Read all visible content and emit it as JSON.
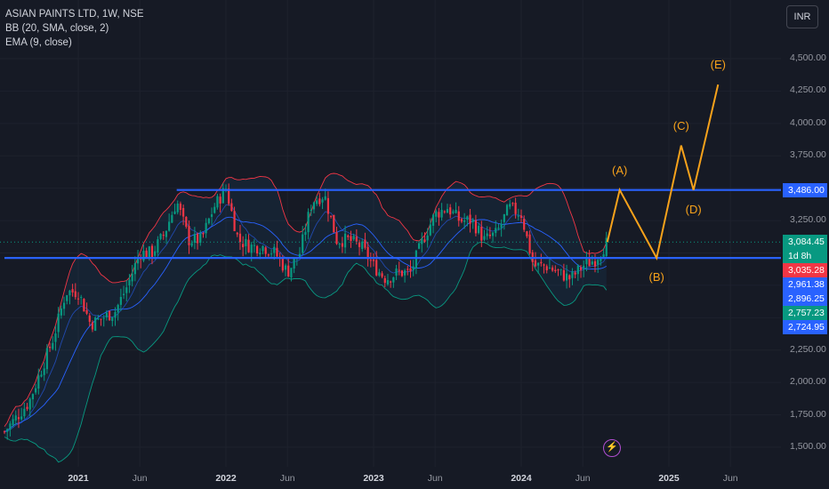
{
  "legend": {
    "title": "ASIAN PAINTS LTD, 1W, NSE",
    "bb": "BB (20, SMA, close, 2)",
    "ema": "EMA (9, close)"
  },
  "currency": "INR",
  "chart_data": {
    "type": "candlestick",
    "symbol": "ASIAN PAINTS LTD",
    "timeframe": "1W",
    "exchange": "NSE",
    "y_axis": {
      "ticks": [
        1500,
        1750,
        2000,
        2250,
        2500,
        2750,
        3000,
        3250,
        3500,
        3750,
        4000,
        4250,
        4500
      ],
      "tick_labels": [
        "1,500.00",
        "1,750.00",
        "2,000.00",
        "2,250.00",
        "2,500.00",
        "2,750.00",
        "3,000.00",
        "3,250.00",
        "3,500.00",
        "3,750.00",
        "4,000.00",
        "4,250.00",
        "4,500.00"
      ],
      "range": [
        1420,
        4640
      ]
    },
    "x_axis": {
      "labels": [
        "2021",
        "Jun",
        "2022",
        "Jun",
        "2023",
        "Jun",
        "2024",
        "Jun",
        "2025",
        "Jun"
      ],
      "years": [
        "2021",
        "2022",
        "2023",
        "2024",
        "2025"
      ],
      "range": [
        "2020-07",
        "2025-10"
      ]
    },
    "price_tags": [
      {
        "label": "3,486.00",
        "value": 3486,
        "color": "#2962ff"
      },
      {
        "label": "3,084.45",
        "value": 3084.45,
        "color": "#089981",
        "sub": "1d 8h"
      },
      {
        "label": "3,035.28",
        "value": 3035.28,
        "color": "#f23645"
      },
      {
        "label": "2,961.38",
        "value": 2961.38,
        "color": "#2962ff"
      },
      {
        "label": "2,896.25",
        "value": 2896.25,
        "color": "#2962ff"
      },
      {
        "label": "2,757.23",
        "value": 2757.23,
        "color": "#089981"
      },
      {
        "label": "2,724.95",
        "value": 2724.95,
        "color": "#2962ff"
      }
    ],
    "horizontal_levels": [
      {
        "value": 3486,
        "from": "2021-09",
        "to": "2025-10"
      },
      {
        "value": 2961.38,
        "from": "2020-07",
        "to": "2025-10"
      }
    ],
    "last_price_line": 3084.45,
    "close_series": [
      {
        "d": "2020-07",
        "v": 1620
      },
      {
        "d": "2020-09",
        "v": 1850
      },
      {
        "d": "2020-11",
        "v": 2350
      },
      {
        "d": "2020-12",
        "v": 2700
      },
      {
        "d": "2021-01",
        "v": 2700
      },
      {
        "d": "2021-02",
        "v": 2450
      },
      {
        "d": "2021-03",
        "v": 2500
      },
      {
        "d": "2021-04",
        "v": 2550
      },
      {
        "d": "2021-05",
        "v": 2750
      },
      {
        "d": "2021-06",
        "v": 3000
      },
      {
        "d": "2021-07",
        "v": 3000
      },
      {
        "d": "2021-08",
        "v": 3150
      },
      {
        "d": "2021-09",
        "v": 3400
      },
      {
        "d": "2021-10",
        "v": 3100
      },
      {
        "d": "2021-11",
        "v": 3100
      },
      {
        "d": "2021-12",
        "v": 3350
      },
      {
        "d": "2022-01",
        "v": 3500
      },
      {
        "d": "2022-02",
        "v": 3100
      },
      {
        "d": "2022-03",
        "v": 3050
      },
      {
        "d": "2022-04",
        "v": 3050
      },
      {
        "d": "2022-05",
        "v": 3000
      },
      {
        "d": "2022-06",
        "v": 2850
      },
      {
        "d": "2022-07",
        "v": 3000
      },
      {
        "d": "2022-08",
        "v": 3400
      },
      {
        "d": "2022-09",
        "v": 3450
      },
      {
        "d": "2022-10",
        "v": 3100
      },
      {
        "d": "2022-11",
        "v": 3100
      },
      {
        "d": "2022-12",
        "v": 3050
      },
      {
        "d": "2023-01",
        "v": 2900
      },
      {
        "d": "2023-02",
        "v": 2800
      },
      {
        "d": "2023-03",
        "v": 2850
      },
      {
        "d": "2023-04",
        "v": 2850
      },
      {
        "d": "2023-05",
        "v": 3100
      },
      {
        "d": "2023-06",
        "v": 3300
      },
      {
        "d": "2023-07",
        "v": 3350
      },
      {
        "d": "2023-08",
        "v": 3250
      },
      {
        "d": "2023-09",
        "v": 3250
      },
      {
        "d": "2023-10",
        "v": 3100
      },
      {
        "d": "2023-11",
        "v": 3150
      },
      {
        "d": "2023-12",
        "v": 3350
      },
      {
        "d": "2024-01",
        "v": 3300
      },
      {
        "d": "2024-02",
        "v": 2900
      },
      {
        "d": "2024-03",
        "v": 2900
      },
      {
        "d": "2024-04",
        "v": 2850
      },
      {
        "d": "2024-05",
        "v": 2800
      },
      {
        "d": "2024-06",
        "v": 2900
      },
      {
        "d": "2024-07",
        "v": 2950
      },
      {
        "d": "2024-08",
        "v": 3084.45
      }
    ],
    "projection": {
      "color": "#f7a21b",
      "points": [
        {
          "label": "",
          "d": "2024-08",
          "v": 3084.45
        },
        {
          "label": "(A)",
          "d": "2024-09",
          "v": 3486
        },
        {
          "label": "(B)",
          "d": "2024-12",
          "v": 2961.38
        },
        {
          "label": "(C)",
          "d": "2025-02",
          "v": 3830
        },
        {
          "label": "(D)",
          "d": "2025-03",
          "v": 3486
        },
        {
          "label": "(E)",
          "d": "2025-05",
          "v": 4300
        }
      ]
    },
    "indicators": [
      "Bollinger Bands (20, SMA, close, 2)",
      "EMA (9, close)"
    ]
  }
}
